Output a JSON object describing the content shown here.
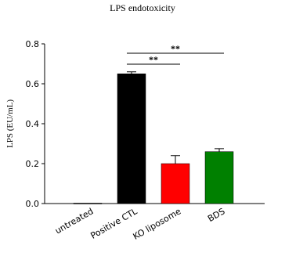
{
  "chart_data": {
    "type": "bar",
    "title": "LPS endotoxicity",
    "y_label": "LPS (EU/mL)",
    "categories": [
      "untreated",
      "Positive CTL",
      "KO liposome",
      "BDS"
    ],
    "values": [
      0.002,
      0.65,
      0.2,
      0.26
    ],
    "errors": [
      0,
      0.01,
      0.04,
      0.015
    ],
    "colors": [
      "#000000",
      "#000000",
      "#ff0000",
      "#008000"
    ],
    "ylim": [
      0,
      0.8
    ],
    "yticks": [
      {
        "value": 0,
        "label": "0.0"
      },
      0.2,
      0.4,
      0.6,
      0.8
    ],
    "annotations": [
      {
        "text": "**",
        "from": 1,
        "to": 2
      },
      {
        "text": "**",
        "from": 1,
        "to": 3
      }
    ]
  }
}
